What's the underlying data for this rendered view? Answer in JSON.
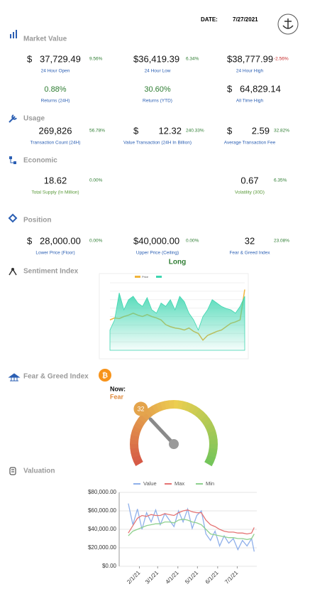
{
  "header": {
    "date_label": "DATE:",
    "date": "7/27/2021"
  },
  "market_value": {
    "title": "Market Value",
    "cells": [
      {
        "currency": "$",
        "value": "37,729.49",
        "change": "9.56%",
        "label": "24 Hour Open"
      },
      {
        "value": "$36,419.39",
        "change": "6.34%",
        "label": "24 Hour Low"
      },
      {
        "value": "$38,777.99",
        "change": "-2.56%",
        "label": "24 Hour High"
      },
      {
        "value": "0.88%",
        "label": "Returns (24H)"
      },
      {
        "value": "30.60%",
        "label": "Returns (YTD)"
      },
      {
        "currency": "$",
        "value": "64,829.14",
        "label": "All Time High"
      }
    ]
  },
  "usage": {
    "title": "Usage",
    "cells": [
      {
        "value": "269,826",
        "change": "56.78%",
        "label": "Transaction Count (24H)"
      },
      {
        "currency": "$",
        "value": "12.32",
        "change": "240.33%",
        "label": "Value Transaction (24H In Billion)"
      },
      {
        "currency": "$",
        "value": "2.59",
        "change": "32.82%",
        "label": "Average Transaction Fee"
      }
    ]
  },
  "economic": {
    "title": "Economic",
    "cells": [
      {
        "value": "18.62",
        "change": "0.00%",
        "label": "Total Supply (In Million)"
      },
      {
        "value": "0.67",
        "change": "6.35%",
        "label": "Volatility (30D)"
      }
    ]
  },
  "position": {
    "title": "Position",
    "cells": [
      {
        "currency": "$",
        "value": "28,000.00",
        "change": "0.00%",
        "label": "Lower Price (Floor)"
      },
      {
        "value": "$40,000.00",
        "change": "0.00%",
        "label": "Upper Price (Ceiling)"
      },
      {
        "value": "32",
        "change": "23.08%",
        "label": "Fear & Greed Index"
      }
    ],
    "signal": "Long"
  },
  "sentiment": {
    "title": "Sentiment Index",
    "chart_data": {
      "type": "line",
      "ylim": [
        0,
        100
      ],
      "series": [
        {
          "name": "Price",
          "color": "#f0b43c",
          "values": [
            45,
            48,
            47,
            50,
            52,
            55,
            52,
            50,
            53,
            50,
            48,
            45,
            38,
            35,
            33,
            32,
            30,
            33,
            28,
            25,
            15,
            22,
            25,
            28,
            30,
            35,
            40,
            42,
            45,
            90
          ]
        },
        {
          "color": "#3ed6b0",
          "area": true,
          "values": [
            30,
            45,
            85,
            60,
            75,
            80,
            70,
            65,
            78,
            60,
            55,
            70,
            65,
            75,
            60,
            80,
            72,
            55,
            45,
            30,
            50,
            60,
            75,
            70,
            65,
            62,
            60,
            55,
            65,
            80
          ]
        }
      ]
    }
  },
  "fear_greed": {
    "title": "Fear & Greed Index",
    "now_label": "Now:",
    "status": "Fear",
    "gauge": {
      "type": "gauge",
      "value": 32,
      "range": [
        0,
        100
      ]
    }
  },
  "valuation": {
    "title": "Valuation",
    "chart_data": {
      "type": "line",
      "x": [
        "1/15/21",
        "1/22/21",
        "1/29/21",
        "2/5/21",
        "2/12/21",
        "2/19/21",
        "2/26/21",
        "3/5/21",
        "3/12/21",
        "3/19/21",
        "3/26/21",
        "4/2/21",
        "4/9/21",
        "4/16/21",
        "4/23/21",
        "4/30/21",
        "5/7/21",
        "5/14/21",
        "5/21/21",
        "5/28/21",
        "6/4/21",
        "6/11/21",
        "6/18/21",
        "6/25/21",
        "7/2/21",
        "7/9/21",
        "7/16/21",
        "7/23/21",
        "7/27/21"
      ],
      "xlim": [
        "1/1/21",
        "7/31/21"
      ],
      "xticks": [
        "2/1/21",
        "3/1/21",
        "4/1/21",
        "5/1/21",
        "6/1/21",
        "7/1/21"
      ],
      "ylim": [
        0,
        80000
      ],
      "yticks": [
        {
          "value": 0,
          "label": "$0.00"
        },
        {
          "value": 20000,
          "label": "$20,000.00"
        },
        {
          "value": 40000,
          "label": "$40,000.00"
        },
        {
          "value": 60000,
          "label": "$60,000.00"
        },
        {
          "value": 80000,
          "label": "$80,000.00"
        }
      ],
      "series": [
        {
          "name": "Value",
          "color": "#8fb0ea",
          "values": [
            68000,
            45000,
            62000,
            40000,
            58000,
            48000,
            61000,
            45000,
            57000,
            50000,
            43000,
            60000,
            48000,
            62000,
            41000,
            55000,
            60000,
            35000,
            28000,
            38000,
            22000,
            33000,
            25000,
            30000,
            18000,
            28000,
            22000,
            30000,
            16000
          ]
        },
        {
          "name": "Max",
          "color": "#e57373",
          "values": [
            36000,
            44000,
            52000,
            55000,
            54000,
            56000,
            55000,
            55000,
            57000,
            56000,
            55000,
            58000,
            60000,
            61000,
            59000,
            58000,
            58000,
            50000,
            45000,
            43000,
            40000,
            38000,
            37000,
            37000,
            36000,
            36000,
            35000,
            36000,
            42000
          ]
        },
        {
          "name": "Min",
          "color": "#8fd18f",
          "values": [
            33000,
            38000,
            40000,
            42000,
            44000,
            45000,
            46000,
            46000,
            48000,
            48000,
            47000,
            50000,
            51000,
            50000,
            48000,
            47000,
            45000,
            40000,
            35000,
            34000,
            33000,
            32000,
            31000,
            31000,
            30000,
            30000,
            29000,
            30000,
            35000
          ]
        }
      ]
    }
  }
}
